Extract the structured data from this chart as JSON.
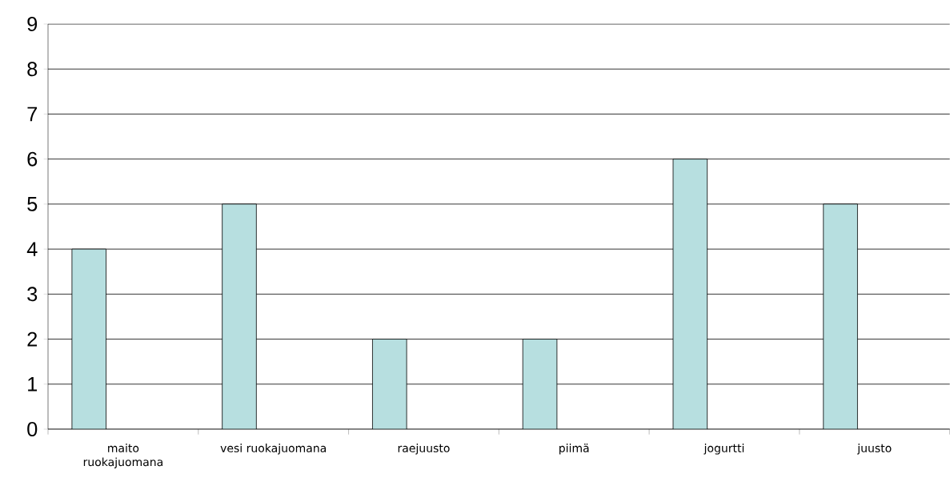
{
  "chart_data": {
    "type": "bar",
    "categories": [
      "maito ruokajuomana",
      "vesi ruokajuomana",
      "raejuusto",
      "piimä",
      "jogurtti",
      "juusto"
    ],
    "values": [
      4,
      5,
      2,
      2,
      6,
      5
    ],
    "color": "#b7dfe0",
    "ylim": [
      0,
      9
    ],
    "yticks": [
      0,
      1,
      2,
      3,
      4,
      5,
      6,
      7,
      8,
      9
    ],
    "grid": "y"
  }
}
